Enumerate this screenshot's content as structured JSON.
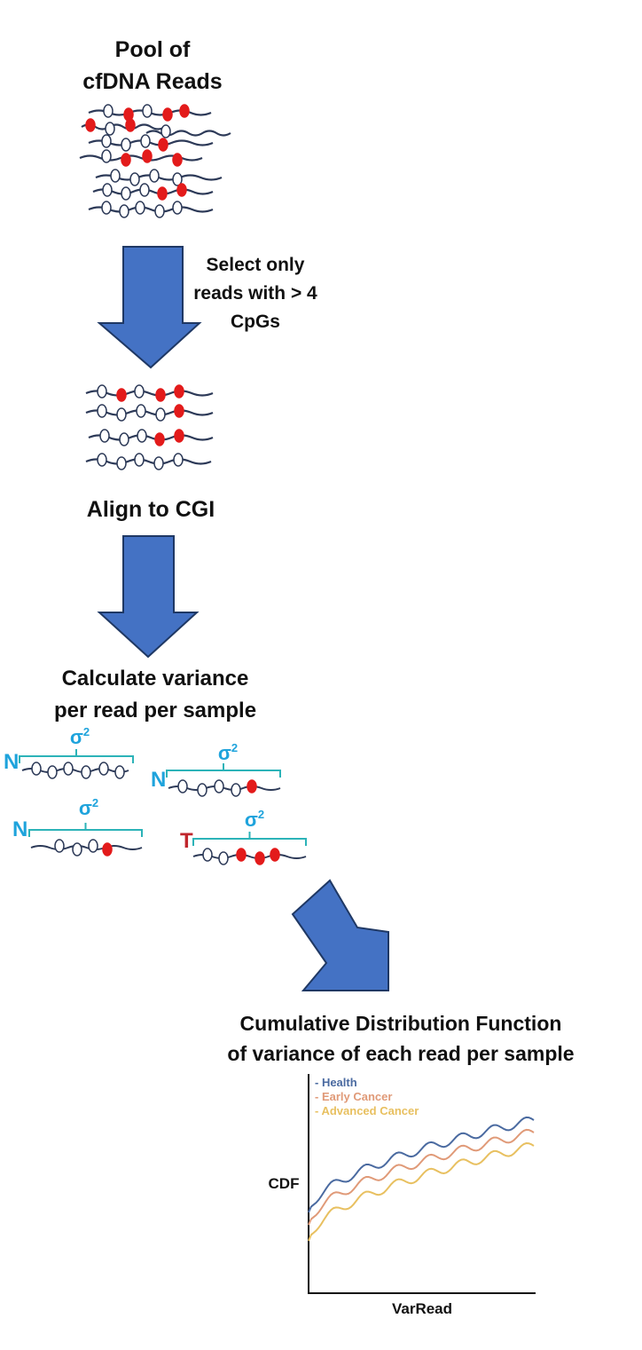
{
  "steps": {
    "pool": {
      "line1": "Pool of",
      "line2": "cfDNA Reads"
    },
    "select": {
      "line1": "Select only",
      "line2": "reads with > 4",
      "line3": "CpGs"
    },
    "align": {
      "label": "Align to CGI"
    },
    "variance": {
      "line1": "Calculate variance",
      "line2": "per read per sample"
    },
    "cdf": {
      "line1": "Cumulative Distribution Function",
      "line2": "of variance of each read per sample"
    }
  },
  "samples": {
    "sigma_symbol": "σ",
    "sigma_exponent": "2",
    "labels": [
      "N",
      "N",
      "N",
      "T"
    ],
    "normal_color": "#1ea3dc",
    "tumor_color": "#c0262c"
  },
  "colors": {
    "arrow_fill": "#4472c4",
    "arrow_stroke": "#1f3864",
    "read_line": "#2d3a58",
    "methylated": "#e31b1b",
    "unmethylated": "#ffffff",
    "bracket": "#2cb3b8"
  },
  "chart_data": {
    "type": "line",
    "xlabel": "VarRead",
    "ylabel": "CDF",
    "grid": false,
    "legend_position": "top-left",
    "series": [
      {
        "name": "Health",
        "color": "#4a6aa0"
      },
      {
        "name": "Early Cancer",
        "color": "#e09a78"
      },
      {
        "name": "Advanced Cancer",
        "color": "#e8c060"
      }
    ]
  }
}
